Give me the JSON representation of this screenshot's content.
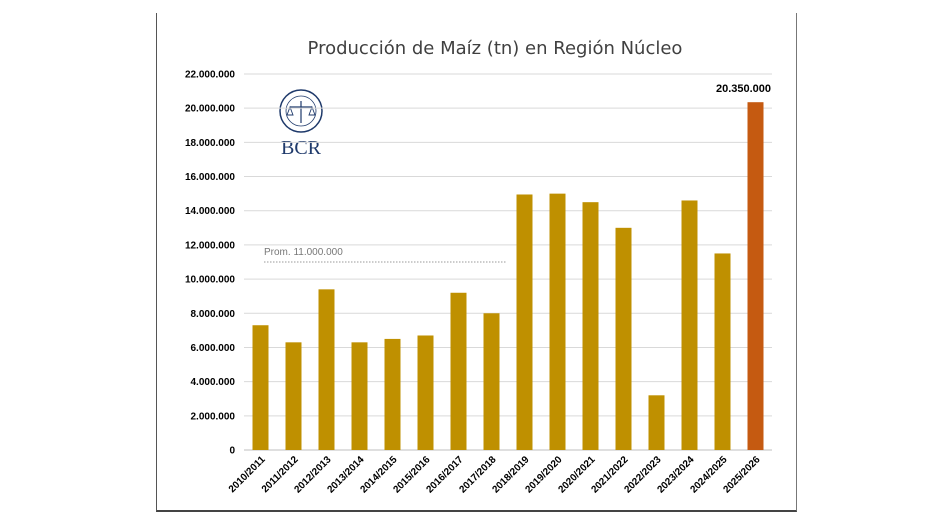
{
  "chart_data": {
    "type": "bar",
    "title": "Producción de Maíz (tn) en Región Núcleo",
    "categories": [
      "2010/2011",
      "2011/2012",
      "2012/2013",
      "2013/2014",
      "2014/2015",
      "2015/2016",
      "2016/2017",
      "2017/2018",
      "2018/2019",
      "2019/2020",
      "2020/2021",
      "2021/2022",
      "2022/2023",
      "2023/2024",
      "2024/2025",
      "2025/2026"
    ],
    "values": [
      7300000,
      6300000,
      9400000,
      6300000,
      6500000,
      6700000,
      9200000,
      8000000,
      14950000,
      15000000,
      14500000,
      13000000,
      3200000,
      14600000,
      11500000,
      20350000
    ],
    "ylim": [
      0,
      22000000
    ],
    "yticks": [
      "0",
      "2.000.000",
      "4.000.000",
      "6.000.000",
      "8.000.000",
      "10.000.000",
      "12.000.000",
      "14.000.000",
      "16.000.000",
      "18.000.000",
      "20.000.000",
      "22.000.000"
    ],
    "ytick_step": 2000000,
    "grid": true,
    "bar_color": "#bf9000",
    "highlight_color": "#c55a11",
    "highlight_index": 15,
    "data_labels": [
      {
        "index": 15,
        "text": "20.350.000"
      }
    ],
    "average": {
      "value": 11000000,
      "label": "Prom. 11.000.000"
    },
    "logo": {
      "text": "BCR"
    }
  }
}
